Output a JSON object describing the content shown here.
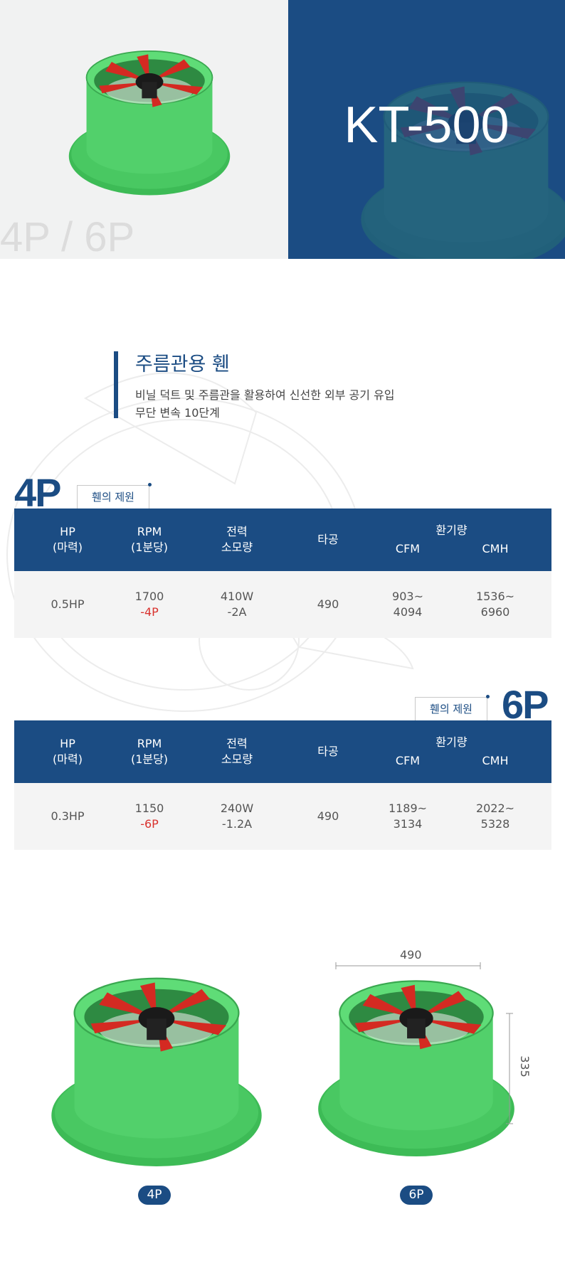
{
  "hero": {
    "series_label": "4P / 6P",
    "model": "KT-500"
  },
  "intro": {
    "title": "주름관용 휀",
    "lines": [
      "비닐 덕트 및 주름관을 활용하여 신선한 외부 공기 유입",
      "무단 변속 10단계"
    ]
  },
  "spec_tables": [
    {
      "pole": "4P",
      "caption": "휀의 제원",
      "headers": [
        [
          "HP",
          "(마력)"
        ],
        [
          "RPM",
          "(1분당)"
        ],
        [
          "전력",
          "소모량"
        ],
        [
          "타공"
        ]
      ],
      "group_header": "환기량",
      "sub_headers": [
        "CFM",
        "CMH"
      ],
      "row": [
        [
          "0.5HP"
        ],
        [
          "1700",
          "-4P"
        ],
        [
          "410W",
          "-2A"
        ],
        [
          "490"
        ],
        [
          "903~",
          "4094"
        ],
        [
          "1536~",
          "6960"
        ]
      ]
    },
    {
      "pole": "6P",
      "caption": "휀의 제원",
      "headers": [
        [
          "HP",
          "(마력)"
        ],
        [
          "RPM",
          "(1분당)"
        ],
        [
          "전력",
          "소모량"
        ],
        [
          "타공"
        ]
      ],
      "group_header": "환기량",
      "sub_headers": [
        "CFM",
        "CMH"
      ],
      "row": [
        [
          "0.3HP"
        ],
        [
          "1150",
          "-6P"
        ],
        [
          "240W",
          "-1.2A"
        ],
        [
          "490"
        ],
        [
          "1189~",
          "3134"
        ],
        [
          "2022~",
          "5328"
        ]
      ]
    }
  ],
  "dimensions": {
    "width": "490",
    "height": "335"
  },
  "badges": [
    "4P",
    "6P"
  ]
}
